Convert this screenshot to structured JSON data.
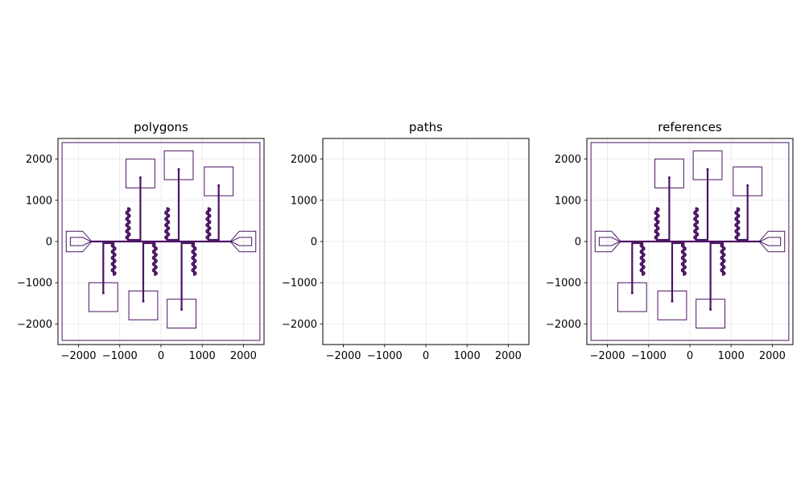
{
  "chart_data": [
    {
      "type": "other",
      "title": "polygons",
      "xlim": [
        -2500,
        2500
      ],
      "ylim": [
        -2500,
        2500
      ],
      "x_ticks": [
        -2000,
        -1000,
        0,
        1000,
        2000
      ],
      "y_ticks": [
        2000,
        1000,
        0,
        -1000,
        -2000
      ],
      "x_tick_labels": [
        "−2000",
        "−1000",
        "0",
        "1000",
        "2000"
      ],
      "y_tick_labels": [
        "2000",
        "1000",
        "0",
        "−1000",
        "−2000"
      ],
      "grid": true,
      "layout_content": "chip"
    },
    {
      "type": "other",
      "title": "paths",
      "xlim": [
        -2500,
        2500
      ],
      "ylim": [
        -2500,
        2500
      ],
      "x_ticks": [
        -2000,
        -1000,
        0,
        1000,
        2000
      ],
      "y_ticks": [
        2000,
        1000,
        0,
        -1000,
        -2000
      ],
      "x_tick_labels": [
        "−2000",
        "−1000",
        "0",
        "1000",
        "2000"
      ],
      "y_tick_labels": [
        "2000",
        "1000",
        "0",
        "−1000",
        "−2000"
      ],
      "grid": true,
      "layout_content": "empty"
    },
    {
      "type": "other",
      "title": "references",
      "xlim": [
        -2500,
        2500
      ],
      "ylim": [
        -2500,
        2500
      ],
      "x_ticks": [
        -2000,
        -1000,
        0,
        1000,
        2000
      ],
      "y_ticks": [
        2000,
        1000,
        0,
        -1000,
        -2000
      ],
      "x_tick_labels": [
        "−2000",
        "−1000",
        "0",
        "1000",
        "2000"
      ],
      "y_tick_labels": [
        "2000",
        "1000",
        "0",
        "−1000",
        "−2000"
      ],
      "grid": true,
      "layout_content": "chip"
    }
  ],
  "chip_layout": {
    "color": "#4b1463",
    "outer_boundary": [
      -2400,
      -2400,
      2400,
      2400
    ],
    "feedline_y": 0,
    "feedline_x": [
      -1700,
      1700
    ],
    "launch_pads": [
      {
        "side": "left",
        "x_outer": -2300,
        "x_inner": -1700
      },
      {
        "side": "right",
        "x_outer": 2300,
        "x_inner": 1700
      }
    ],
    "upper_resonators": [
      {
        "x": -500,
        "meander_x": -800,
        "pad_center": [
          -500,
          1650
        ],
        "end_y": 1550
      },
      {
        "x": 430,
        "meander_x": 150,
        "pad_center": [
          430,
          1850
        ],
        "end_y": 1750
      },
      {
        "x": 1400,
        "meander_x": 1150,
        "pad_center": [
          1400,
          1460
        ],
        "end_y": 1360
      }
    ],
    "lower_resonators": [
      {
        "x": -1400,
        "meander_x": -1150,
        "pad_center": [
          -1400,
          -1350
        ],
        "end_y": -1250
      },
      {
        "x": -430,
        "meander_x": -150,
        "pad_center": [
          -430,
          -1550
        ],
        "end_y": -1450
      },
      {
        "x": 500,
        "meander_x": 800,
        "pad_center": [
          500,
          -1750
        ],
        "end_y": -1650
      }
    ],
    "pad_size": 700
  }
}
